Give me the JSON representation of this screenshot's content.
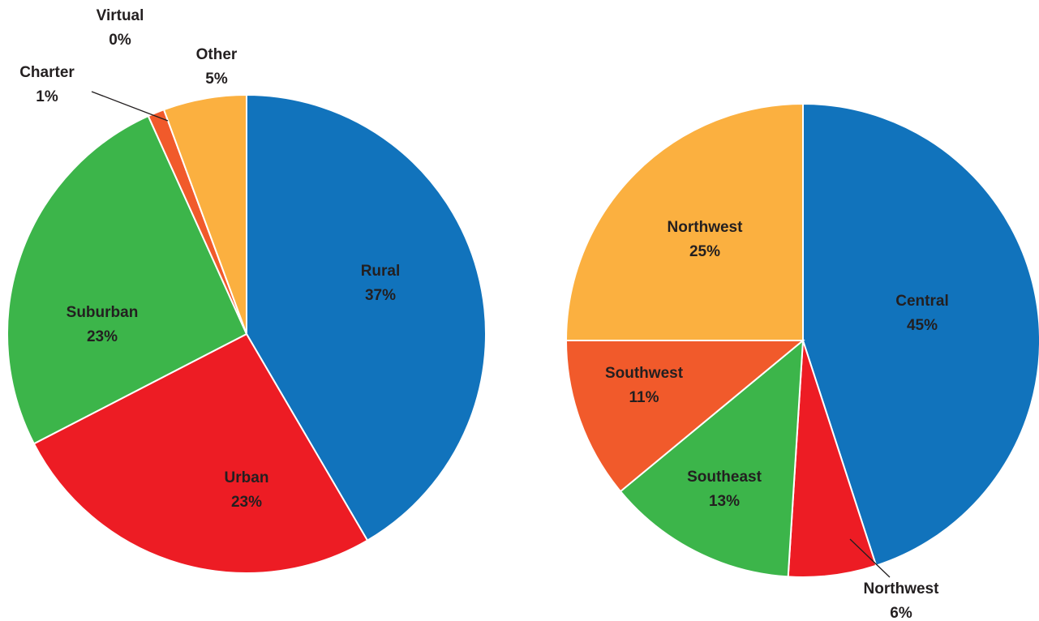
{
  "chart_data": [
    {
      "type": "pie",
      "categories": [
        "Rural",
        "Urban",
        "Suburban",
        "Charter",
        "Virtual",
        "Other"
      ],
      "values": [
        37,
        23,
        23,
        1,
        0,
        5
      ],
      "value_labels": [
        "37%",
        "23%",
        "23%",
        "1%",
        "0%",
        "5%"
      ],
      "colors": [
        "#1173bc",
        "#ed1c24",
        "#3cb54a",
        "#f15a2b",
        "#f15a2b",
        "#fbb040"
      ]
    },
    {
      "type": "pie",
      "categories": [
        "Central",
        "Northwest",
        "Southeast",
        "Southwest",
        "Northwest"
      ],
      "values": [
        45,
        6,
        13,
        11,
        25
      ],
      "value_labels": [
        "45%",
        "6%",
        "13%",
        "11%",
        "25%"
      ],
      "colors": [
        "#1173bc",
        "#ed1c24",
        "#3cb54a",
        "#f15a2b",
        "#fbb040"
      ]
    }
  ]
}
